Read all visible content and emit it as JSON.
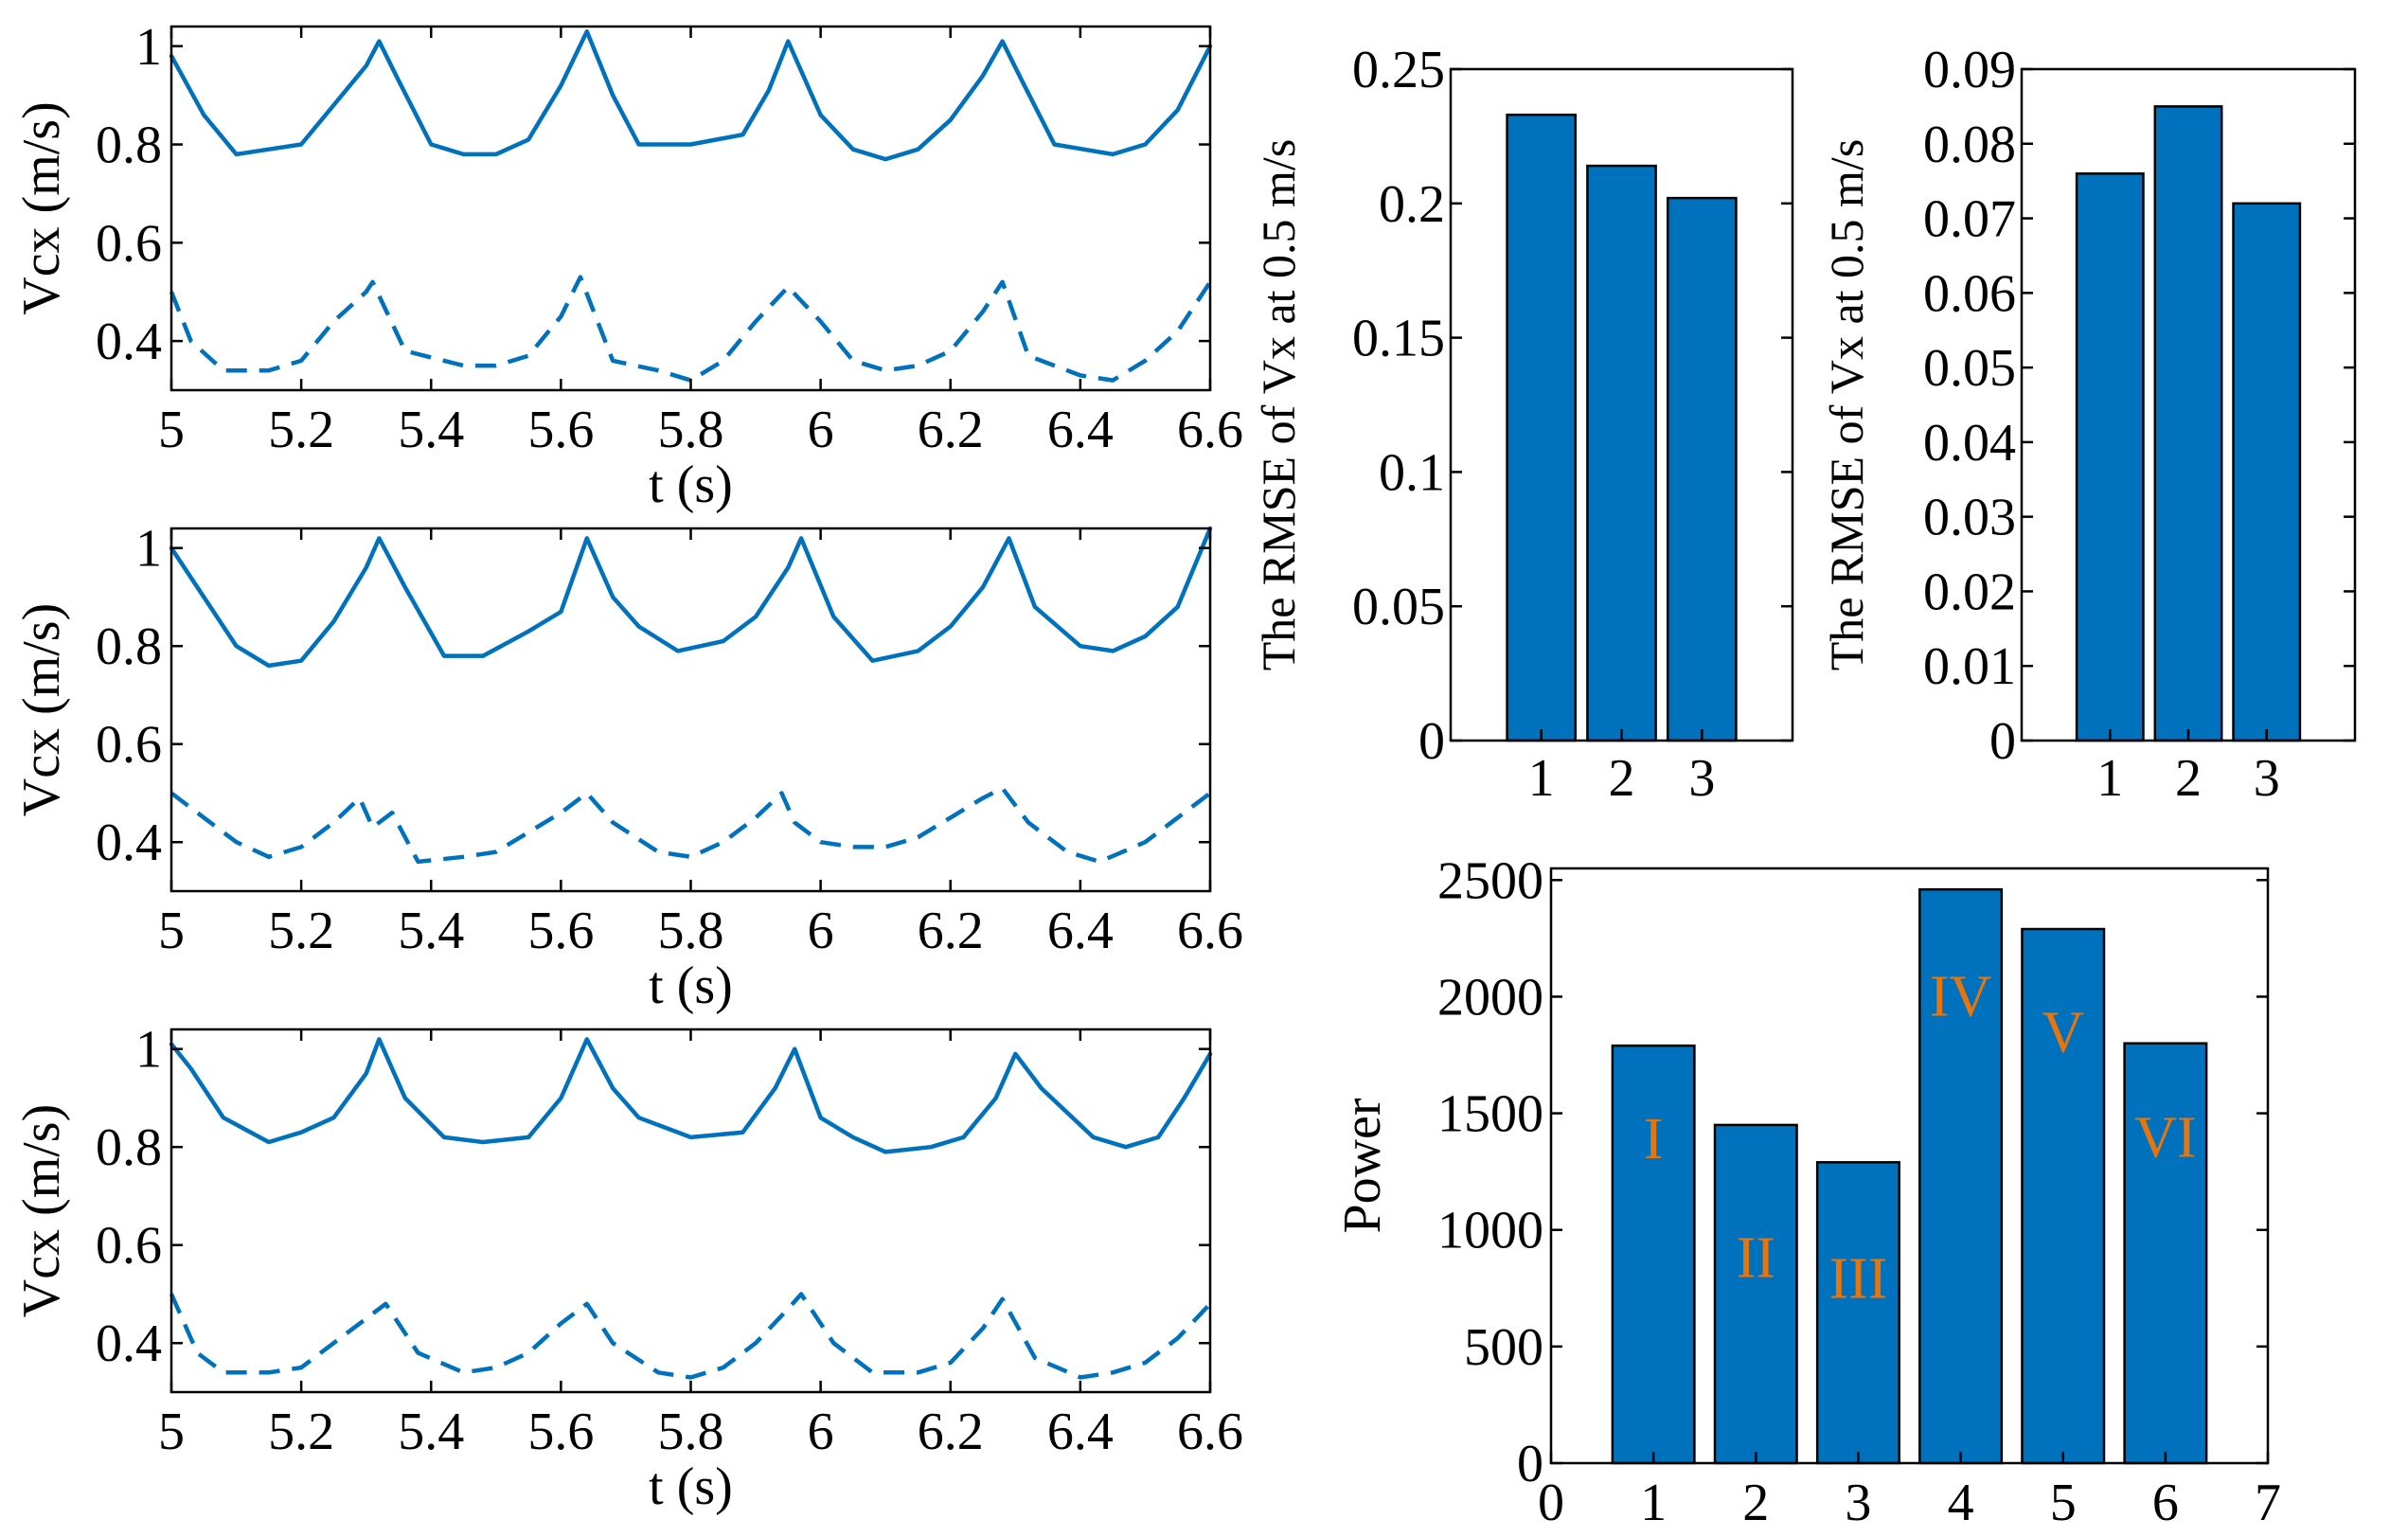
{
  "colors": {
    "line": "#0072BD",
    "bar": "#0072BD",
    "roman": "#E8740C",
    "axis": "#000000"
  },
  "chart_data": [
    {
      "id": "vcx_1",
      "type": "line",
      "xlabel": "t (s)",
      "ylabel": "Vcx (m/s)",
      "xlim": [
        5,
        6.6
      ],
      "ylim": [
        0.3,
        1.04
      ],
      "xticks": [
        "5",
        "5.2",
        "5.4",
        "5.6",
        "5.8",
        "6",
        "6.2",
        "6.4",
        "6.6"
      ],
      "yticks": [
        "0.4",
        "0.6",
        "0.8",
        "1"
      ],
      "series": [
        {
          "name": "solid",
          "style": "solid",
          "x": [
            5.0,
            5.05,
            5.1,
            5.15,
            5.2,
            5.25,
            5.3,
            5.32,
            5.35,
            5.4,
            5.45,
            5.5,
            5.55,
            5.6,
            5.64,
            5.68,
            5.72,
            5.8,
            5.88,
            5.92,
            5.95,
            6.0,
            6.05,
            6.1,
            6.15,
            6.2,
            6.25,
            6.28,
            6.31,
            6.36,
            6.45,
            6.5,
            6.55,
            6.6
          ],
          "y": [
            0.98,
            0.86,
            0.78,
            0.79,
            0.8,
            0.88,
            0.96,
            1.01,
            0.93,
            0.8,
            0.78,
            0.78,
            0.81,
            0.92,
            1.03,
            0.9,
            0.8,
            0.8,
            0.82,
            0.91,
            1.01,
            0.86,
            0.79,
            0.77,
            0.79,
            0.85,
            0.94,
            1.01,
            0.93,
            0.8,
            0.78,
            0.8,
            0.87,
            1.0
          ]
        },
        {
          "name": "dashed",
          "style": "dashed",
          "x": [
            5.0,
            5.03,
            5.08,
            5.15,
            5.2,
            5.25,
            5.3,
            5.31,
            5.36,
            5.45,
            5.5,
            5.55,
            5.6,
            5.63,
            5.68,
            5.75,
            5.8,
            5.85,
            5.9,
            5.95,
            6.0,
            6.05,
            6.1,
            6.15,
            6.2,
            6.25,
            6.28,
            6.32,
            6.4,
            6.45,
            6.5,
            6.55,
            6.6
          ],
          "y": [
            0.5,
            0.4,
            0.34,
            0.34,
            0.36,
            0.44,
            0.5,
            0.52,
            0.38,
            0.35,
            0.35,
            0.37,
            0.45,
            0.53,
            0.36,
            0.34,
            0.32,
            0.36,
            0.44,
            0.51,
            0.44,
            0.36,
            0.34,
            0.35,
            0.38,
            0.46,
            0.52,
            0.37,
            0.33,
            0.32,
            0.36,
            0.42,
            0.52
          ]
        }
      ]
    },
    {
      "id": "vcx_2",
      "type": "line",
      "xlabel": "t (s)",
      "ylabel": "Vcx (m/s)",
      "xlim": [
        5,
        6.6
      ],
      "ylim": [
        0.3,
        1.04
      ],
      "xticks": [
        "5",
        "5.2",
        "5.4",
        "5.6",
        "5.8",
        "6",
        "6.2",
        "6.4",
        "6.6"
      ],
      "yticks": [
        "0.4",
        "0.6",
        "0.8",
        "1"
      ],
      "series": [
        {
          "name": "solid",
          "style": "solid",
          "x": [
            5.0,
            5.05,
            5.1,
            5.15,
            5.2,
            5.25,
            5.3,
            5.32,
            5.36,
            5.42,
            5.48,
            5.55,
            5.6,
            5.64,
            5.68,
            5.72,
            5.78,
            5.85,
            5.9,
            5.95,
            5.97,
            6.02,
            6.08,
            6.15,
            6.2,
            6.25,
            6.29,
            6.33,
            6.4,
            6.45,
            6.5,
            6.55,
            6.6
          ],
          "y": [
            1.0,
            0.9,
            0.8,
            0.76,
            0.77,
            0.85,
            0.96,
            1.02,
            0.92,
            0.78,
            0.78,
            0.83,
            0.87,
            1.02,
            0.9,
            0.84,
            0.79,
            0.81,
            0.86,
            0.96,
            1.02,
            0.86,
            0.77,
            0.79,
            0.84,
            0.92,
            1.02,
            0.88,
            0.8,
            0.79,
            0.82,
            0.88,
            1.04
          ]
        },
        {
          "name": "dashed",
          "style": "dashed",
          "x": [
            5.0,
            5.05,
            5.1,
            5.15,
            5.2,
            5.25,
            5.29,
            5.31,
            5.34,
            5.38,
            5.45,
            5.5,
            5.55,
            5.6,
            5.64,
            5.68,
            5.75,
            5.8,
            5.85,
            5.9,
            5.94,
            5.96,
            6.0,
            6.05,
            6.1,
            6.15,
            6.2,
            6.25,
            6.28,
            6.32,
            6.38,
            6.43,
            6.5,
            6.55,
            6.6
          ],
          "y": [
            0.5,
            0.45,
            0.4,
            0.37,
            0.39,
            0.44,
            0.49,
            0.43,
            0.46,
            0.36,
            0.37,
            0.38,
            0.42,
            0.46,
            0.5,
            0.44,
            0.38,
            0.37,
            0.4,
            0.45,
            0.5,
            0.44,
            0.4,
            0.39,
            0.39,
            0.41,
            0.45,
            0.49,
            0.51,
            0.44,
            0.38,
            0.36,
            0.4,
            0.45,
            0.5
          ]
        }
      ]
    },
    {
      "id": "vcx_3",
      "type": "line",
      "xlabel": "t (s)",
      "ylabel": "Vcx (m/s)",
      "xlim": [
        5,
        6.6
      ],
      "ylim": [
        0.3,
        1.04
      ],
      "xticks": [
        "5",
        "5.2",
        "5.4",
        "5.6",
        "5.8",
        "6",
        "6.2",
        "6.4",
        "6.6"
      ],
      "yticks": [
        "0.4",
        "0.6",
        "0.8",
        "1"
      ],
      "series": [
        {
          "name": "solid",
          "style": "solid",
          "x": [
            5.0,
            5.03,
            5.08,
            5.15,
            5.2,
            5.25,
            5.3,
            5.32,
            5.36,
            5.42,
            5.48,
            5.55,
            5.6,
            5.64,
            5.68,
            5.72,
            5.8,
            5.88,
            5.93,
            5.96,
            6.0,
            6.05,
            6.1,
            6.17,
            6.22,
            6.27,
            6.3,
            6.34,
            6.42,
            6.47,
            6.52,
            6.56,
            6.6
          ],
          "y": [
            1.01,
            0.96,
            0.86,
            0.81,
            0.83,
            0.86,
            0.95,
            1.02,
            0.9,
            0.82,
            0.81,
            0.82,
            0.9,
            1.02,
            0.92,
            0.86,
            0.82,
            0.83,
            0.92,
            1.0,
            0.86,
            0.82,
            0.79,
            0.8,
            0.82,
            0.9,
            0.99,
            0.92,
            0.82,
            0.8,
            0.82,
            0.9,
            0.99
          ]
        },
        {
          "name": "dashed",
          "style": "dashed",
          "x": [
            5.0,
            5.04,
            5.08,
            5.15,
            5.2,
            5.25,
            5.3,
            5.33,
            5.38,
            5.45,
            5.5,
            5.55,
            5.6,
            5.64,
            5.68,
            5.75,
            5.8,
            5.85,
            5.9,
            5.95,
            5.97,
            6.02,
            6.08,
            6.15,
            6.2,
            6.25,
            6.28,
            6.33,
            6.4,
            6.45,
            6.5,
            6.55,
            6.6
          ],
          "y": [
            0.5,
            0.38,
            0.34,
            0.34,
            0.35,
            0.4,
            0.45,
            0.48,
            0.38,
            0.34,
            0.35,
            0.38,
            0.44,
            0.48,
            0.4,
            0.34,
            0.33,
            0.35,
            0.4,
            0.47,
            0.5,
            0.4,
            0.34,
            0.34,
            0.36,
            0.43,
            0.49,
            0.37,
            0.33,
            0.34,
            0.36,
            0.41,
            0.48
          ]
        }
      ]
    },
    {
      "id": "rmse_1",
      "type": "bar",
      "ylabel": "The RMSE of Vx at 0.5 m/s",
      "categories": [
        "1",
        "2",
        "3"
      ],
      "values": [
        0.233,
        0.214,
        0.202
      ],
      "ylim": [
        0,
        0.25
      ],
      "yticks": [
        "0",
        "0.05",
        "0.1",
        "0.15",
        "0.2",
        "0.25"
      ]
    },
    {
      "id": "rmse_2",
      "type": "bar",
      "ylabel": "The RMSE of Vx at 0.5 m/s",
      "categories": [
        "1",
        "2",
        "3"
      ],
      "values": [
        0.076,
        0.085,
        0.072
      ],
      "ylim": [
        0,
        0.09
      ],
      "yticks": [
        "0",
        "0.01",
        "0.02",
        "0.03",
        "0.04",
        "0.05",
        "0.06",
        "0.07",
        "0.08",
        "0.09"
      ]
    },
    {
      "id": "power",
      "type": "bar",
      "ylabel": "Power",
      "x": [
        1,
        2,
        3,
        4,
        5,
        6
      ],
      "values": [
        1790,
        1450,
        1290,
        2460,
        2290,
        1800
      ],
      "bar_labels": [
        "I",
        "II",
        "III",
        "IV",
        "V",
        "VI"
      ],
      "xlim": [
        0,
        7
      ],
      "ylim": [
        0,
        2550
      ],
      "xticks": [
        "0",
        "1",
        "2",
        "3",
        "4",
        "5",
        "6",
        "7"
      ],
      "yticks": [
        "0",
        "500",
        "1000",
        "1500",
        "2000",
        "2500"
      ]
    }
  ]
}
